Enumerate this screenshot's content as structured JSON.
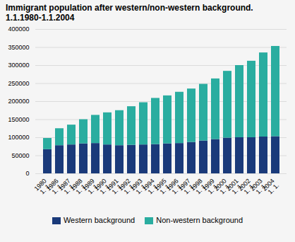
{
  "chart_data": {
    "type": "bar",
    "stacked": true,
    "title": "Immigrant population after western/non-western background.\n1.1.1980-1.1.2004",
    "categories": [
      "1980",
      "1986",
      "1987",
      "1988",
      "1989",
      "1990",
      "1991",
      "1992",
      "1993",
      "1994",
      "1995",
      "1996",
      "1997",
      "1998",
      "1999",
      "2000",
      "2001",
      "2002",
      "2003",
      "2004"
    ],
    "annotations": [
      {
        "x": "1980",
        "text": "1. 1."
      },
      {
        "x": "1986",
        "text": "1. 1."
      },
      {
        "x": "1987",
        "text": "1. 1."
      },
      {
        "x": "1988",
        "text": "1. 1."
      },
      {
        "x": "1989",
        "text": "1. 1."
      },
      {
        "x": "1990",
        "text": "1. 1."
      },
      {
        "x": "1991",
        "text": "1. 1."
      },
      {
        "x": "1992",
        "text": "1. 1."
      },
      {
        "x": "1993",
        "text": "1. 1."
      },
      {
        "x": "1994",
        "text": "1. 1."
      },
      {
        "x": "1995",
        "text": "1. 1."
      },
      {
        "x": "1996",
        "text": "1. 1."
      },
      {
        "x": "1997",
        "text": "1. 1."
      },
      {
        "x": "1998",
        "text": "1. 1."
      },
      {
        "x": "1999",
        "text": "1. 1."
      },
      {
        "x": "2000",
        "text": "1. 1."
      },
      {
        "x": "2001",
        "text": "1. 1."
      },
      {
        "x": "2002",
        "text": "1. 1."
      },
      {
        "x": "2003",
        "text": "1. 1."
      },
      {
        "x": "2004",
        "text": "1. 1."
      }
    ],
    "series": [
      {
        "name": "Western background",
        "color": "#1a3a7a",
        "values": [
          67000,
          78000,
          80000,
          83000,
          84000,
          80000,
          78000,
          79000,
          80000,
          81000,
          83000,
          84000,
          87000,
          91000,
          95000,
          99000,
          100000,
          100000,
          102000,
          103000
        ]
      },
      {
        "name": "Non-western background",
        "color": "#2aada0",
        "values": [
          31000,
          47000,
          55000,
          67000,
          78000,
          89000,
          97000,
          107000,
          117000,
          128000,
          133000,
          142000,
          148000,
          157000,
          168000,
          185000,
          200000,
          212000,
          233000,
          250000
        ]
      }
    ],
    "ylim": [
      0,
      400000
    ],
    "yticks": [
      0,
      50000,
      100000,
      150000,
      200000,
      250000,
      300000,
      350000,
      400000
    ],
    "grid": true,
    "legend": "bottom"
  }
}
